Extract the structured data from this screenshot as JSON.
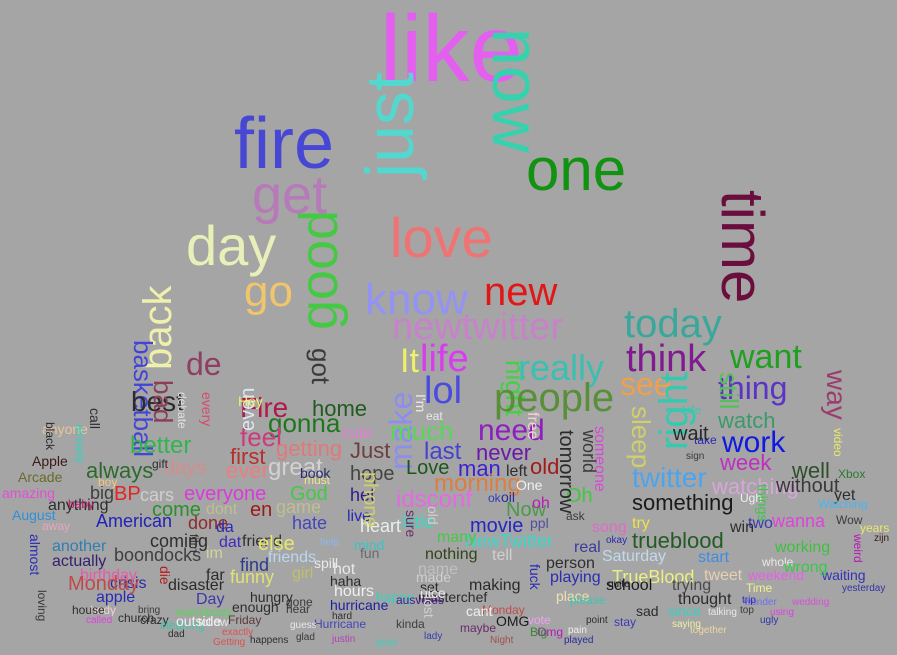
{
  "background": "#a5a5a5",
  "words": [
    {
      "text": "like",
      "color": "#e45ff0"
    },
    {
      "text": "now",
      "color": "#35d2ad"
    },
    {
      "text": "fire",
      "color": "#4747d6"
    },
    {
      "text": "just",
      "color": "#53d8d0"
    },
    {
      "text": "one",
      "color": "#119211"
    },
    {
      "text": "get",
      "color": "#b67ab8"
    },
    {
      "text": "time",
      "color": "#6a0f3d"
    },
    {
      "text": "day",
      "color": "#e9efb8"
    },
    {
      "text": "love",
      "color": "#f07373"
    },
    {
      "text": "good",
      "color": "#45c945"
    },
    {
      "text": "go",
      "color": "#f1c56b"
    },
    {
      "text": "know",
      "color": "#9393f4"
    },
    {
      "text": "new",
      "color": "#e01717"
    },
    {
      "text": "newtwitter",
      "color": "#c782c9"
    },
    {
      "text": "today",
      "color": "#3aa79b"
    },
    {
      "text": "back",
      "color": "#eff0ab"
    },
    {
      "text": "got",
      "color": "#3a3a3a"
    },
    {
      "text": "basketball",
      "color": "#4444d8"
    },
    {
      "text": "life",
      "color": "#d93bf0"
    },
    {
      "text": "It",
      "color": "#eef06a"
    },
    {
      "text": "really",
      "color": "#39c0b0"
    },
    {
      "text": "think",
      "color": "#7f1b8f"
    },
    {
      "text": "want",
      "color": "#1fa01f"
    },
    {
      "text": "see",
      "color": "#f0a04a"
    },
    {
      "text": "de",
      "color": "#8e3f63"
    },
    {
      "text": "make",
      "color": "#8d8df0"
    },
    {
      "text": "lol",
      "color": "#4b4be0"
    },
    {
      "text": "night",
      "color": "#3ed43e"
    },
    {
      "text": "people",
      "color": "#5a8f3a"
    },
    {
      "text": "thing",
      "color": "#5b33c6"
    },
    {
      "text": "best",
      "color": "#2b2b2b"
    },
    {
      "text": "bad",
      "color": "#8a3e5a"
    },
    {
      "text": "right",
      "color": "#36c9b0"
    },
    {
      "text": "still",
      "color": "#53c253"
    },
    {
      "text": "way",
      "color": "#9b3c6e"
    },
    {
      "text": "Fire",
      "color": "#ad1a4b"
    },
    {
      "text": "home",
      "color": "#205b20"
    },
    {
      "text": "gonna",
      "color": "#1d781d"
    },
    {
      "text": "much",
      "color": "#58d658"
    },
    {
      "text": "need",
      "color": "#8e1fbf"
    },
    {
      "text": "watch",
      "color": "#3b9a6a"
    },
    {
      "text": "feel",
      "color": "#cc3a7f"
    },
    {
      "text": "better",
      "color": "#31b64c"
    },
    {
      "text": "even",
      "color": "#dce8ef"
    },
    {
      "text": "getting",
      "color": "#e07979"
    },
    {
      "text": "Just",
      "color": "#6b3f3f"
    },
    {
      "text": "last",
      "color": "#4343d2"
    },
    {
      "text": "work",
      "color": "#0f1ae0"
    },
    {
      "text": "never",
      "color": "#6b18a8"
    },
    {
      "text": "first",
      "color": "#b92d2d"
    },
    {
      "text": "always",
      "color": "#2c6a2c"
    },
    {
      "text": "days",
      "color": "#d48d8d"
    },
    {
      "text": "ever",
      "color": "#e97f7f"
    },
    {
      "text": "great",
      "color": "#d2d2d2"
    },
    {
      "text": "hope",
      "color": "#444444"
    },
    {
      "text": "Love",
      "color": "#1b561b"
    },
    {
      "text": "man",
      "color": "#3f1fcf"
    },
    {
      "text": "old",
      "color": "#a31a1a"
    },
    {
      "text": "week",
      "color": "#c02ec0"
    },
    {
      "text": "well",
      "color": "#2d4f2d"
    },
    {
      "text": "twitter",
      "color": "#4ba4f0"
    },
    {
      "text": "watching",
      "color": "#d7a6d9"
    },
    {
      "text": "anyone",
      "color": "#e8c59a"
    },
    {
      "text": "big",
      "color": "#404040"
    },
    {
      "text": "BP",
      "color": "#e22525"
    },
    {
      "text": "cars",
      "color": "#cfcfcf"
    },
    {
      "text": "everyone",
      "color": "#dd38dd"
    },
    {
      "text": "God",
      "color": "#45c945"
    },
    {
      "text": "het",
      "color": "#2c1c8c"
    },
    {
      "text": "morning",
      "color": "#dd7e3e"
    },
    {
      "text": "idsconf",
      "color": "#e36ae3"
    },
    {
      "text": "something",
      "color": "#1a1a1a"
    },
    {
      "text": "yet",
      "color": "#2e2e2e"
    },
    {
      "text": "American",
      "color": "#2222b8"
    },
    {
      "text": "come",
      "color": "#2b8f2b"
    },
    {
      "text": "done",
      "color": "#8e2a2a"
    },
    {
      "text": "dat",
      "color": "#3f2bbd"
    },
    {
      "text": "hate",
      "color": "#4444bb"
    },
    {
      "text": "heart",
      "color": "#e9f0e9"
    },
    {
      "text": "little",
      "color": "#3ad7c2"
    },
    {
      "text": "movie",
      "color": "#2626c7"
    },
    {
      "text": "ppl",
      "color": "#4f4f9f"
    },
    {
      "text": "trueblood",
      "color": "#245a24"
    },
    {
      "text": "two",
      "color": "#3a3ab2"
    },
    {
      "text": "wanna",
      "color": "#dc44dc"
    },
    {
      "text": "another",
      "color": "#2e7eb3"
    },
    {
      "text": "boondocks",
      "color": "#3f3f3f"
    },
    {
      "text": "coming",
      "color": "#2e2e2e"
    },
    {
      "text": "friend",
      "color": "#2f2f2f"
    },
    {
      "text": "NewTwitter",
      "color": "#38d8c8"
    },
    {
      "text": "real",
      "color": "#3b3b9b"
    },
    {
      "text": "start",
      "color": "#3f8be0"
    },
    {
      "text": "working",
      "color": "#3ec13e"
    },
    {
      "text": "actually",
      "color": "#34206f"
    },
    {
      "text": "find",
      "color": "#2d3b8b"
    },
    {
      "text": "friends",
      "color": "#b9d8f0"
    },
    {
      "text": "nothing",
      "color": "#31431a"
    },
    {
      "text": "Saturday",
      "color": "#c0daf0"
    },
    {
      "text": "TrueBlood",
      "color": "#eef080"
    },
    {
      "text": "weekend",
      "color": "#e85ee8"
    },
    {
      "text": "waiting",
      "color": "#3333b8"
    },
    {
      "text": "crisis",
      "color": "#2a2aaa"
    },
    {
      "text": "disaster",
      "color": "#2a2a2a"
    },
    {
      "text": "funny",
      "color": "#e2e270"
    },
    {
      "text": "girl",
      "color": "#c0c06a"
    },
    {
      "text": "haha",
      "color": "#2b2b2b"
    },
    {
      "text": "made",
      "color": "#d0d0d0"
    },
    {
      "text": "making",
      "color": "#2a2a2a"
    },
    {
      "text": "playing",
      "color": "#2d2db0"
    },
    {
      "text": "school",
      "color": "#1a1a1a"
    },
    {
      "text": "trying",
      "color": "#4a4a4a"
    },
    {
      "text": "Time",
      "color": "#f0f090"
    },
    {
      "text": "thought",
      "color": "#2b2b2b"
    },
    {
      "text": "enough",
      "color": "#2e2e2e"
    },
    {
      "text": "gone",
      "color": "#3a3a3a"
    },
    {
      "text": "hours",
      "color": "#f0f0f0"
    },
    {
      "text": "hurricane",
      "color": "#1f1f9f"
    },
    {
      "text": "masterchef",
      "color": "#2b2b2b"
    },
    {
      "text": "place",
      "color": "#f0e1b0"
    },
    {
      "text": "sad",
      "color": "#2c2c2c"
    },
    {
      "text": "since",
      "color": "#3ad0c0"
    },
    {
      "text": "church",
      "color": "#2e2e2e"
    },
    {
      "text": "OMG",
      "color": "#1a1a1a"
    },
    {
      "text": "Monday",
      "color": "#c04a4a"
    },
    {
      "text": "Hurricane",
      "color": "#4545b6"
    },
    {
      "text": "kinda",
      "color": "#3d3d3d"
    },
    {
      "text": "maybe",
      "color": "#6a2a6a"
    },
    {
      "text": "Omg",
      "color": "#b51bb5"
    },
    {
      "text": "lady",
      "color": "#3a3ab0"
    },
    {
      "text": "Night",
      "color": "#a34d4d"
    },
    {
      "text": "played",
      "color": "#2a2a9a"
    },
    {
      "text": "together",
      "color": "#f0d6a0"
    },
    {
      "text": "Arcade",
      "color": "#6a6a2a"
    },
    {
      "text": "amazing",
      "color": "#e34ed5"
    },
    {
      "text": "August",
      "color": "#2f8fd8"
    },
    {
      "text": "Apple",
      "color": "#3a1a1a"
    },
    {
      "text": "Xbox",
      "color": "#2d7a2d"
    },
    {
      "text": "Wow",
      "color": "#3a3a3a"
    },
    {
      "text": "years",
      "color": "#e8e86a"
    },
    {
      "text": "zijn",
      "color": "#3a1a1a"
    },
    {
      "text": "yesterday",
      "color": "#3333a8"
    },
    {
      "text": "ugly",
      "color": "#3333a8"
    },
    {
      "text": "wedding",
      "color": "#d94ed9"
    },
    {
      "text": "wonder",
      "color": "#6f6ff0"
    },
    {
      "text": "talking",
      "color": "#e8e8e8"
    },
    {
      "text": "point",
      "color": "#2c2c2c"
    },
    {
      "text": "stay",
      "color": "#3a3ab6"
    },
    {
      "text": "pain",
      "color": "#f0f0f0"
    },
    {
      "text": "quite",
      "color": "#1a1a1a"
    },
    {
      "text": "person",
      "color": "#2e2e2e"
    },
    {
      "text": "Now",
      "color": "#4a9a4a"
    },
    {
      "text": "One",
      "color": "#f0f0f0"
    },
    {
      "text": "Oh",
      "color": "#3fc83f"
    },
    {
      "text": "oil",
      "color": "#2a2a9a"
    },
    {
      "text": "ask",
      "color": "#3a3a3a"
    },
    {
      "text": "away",
      "color": "#e8a5c0"
    },
    {
      "text": "anything",
      "color": "#2d2d2d"
    },
    {
      "text": "apple",
      "color": "#2a2ab6"
    },
    {
      "text": "boy",
      "color": "#f0c87a"
    },
    {
      "text": "baby",
      "color": "#b71b6b"
    },
    {
      "text": "birthday",
      "color": "#e85aa8"
    },
    {
      "text": "body",
      "color": "#f0d0d0"
    },
    {
      "text": "bring",
      "color": "#3a3a3a"
    },
    {
      "text": "called",
      "color": "#e040e0"
    },
    {
      "text": "crazy",
      "color": "#2a2a2a"
    },
    {
      "text": "cleaning",
      "color": "#3ac8b0"
    },
    {
      "text": "Day",
      "color": "#3a3aa8"
    },
    {
      "text": "dad",
      "color": "#2e2e2e"
    },
    {
      "text": "follow",
      "color": "#e6e6e6"
    },
    {
      "text": "everybody",
      "color": "#5ad45a"
    },
    {
      "text": "Friday",
      "color": "#5a3a3a"
    },
    {
      "text": "exactly",
      "color": "#e04f4f"
    },
    {
      "text": "happens",
      "color": "#2d2d2d"
    },
    {
      "text": "Getting",
      "color": "#e04f4f"
    },
    {
      "text": "justin",
      "color": "#b53fb5"
    },
    {
      "text": "glad",
      "color": "#3a3a3a"
    },
    {
      "text": "guys",
      "color": "#3ad0c0"
    },
    {
      "text": "guess",
      "color": "#e8e8e8"
    },
    {
      "text": "hear",
      "color": "#3a3a3a"
    },
    {
      "text": "hungry",
      "color": "#2d2d2d"
    },
    {
      "text": "happy",
      "color": "#3ad0c0"
    },
    {
      "text": "hard",
      "color": "#2e2e2e"
    },
    {
      "text": "hot",
      "color": "#e8e8e8"
    },
    {
      "text": "live",
      "color": "#2a2ab6"
    },
    {
      "text": "mind",
      "color": "#3ac3c3"
    },
    {
      "text": "many",
      "color": "#45c845"
    },
    {
      "text": "name",
      "color": "#c0c0c0"
    },
    {
      "text": "set",
      "color": "#2a2a2a"
    },
    {
      "text": "tell",
      "color": "#d0d0d0"
    },
    {
      "text": "take",
      "color": "#2a2ab6"
    },
    {
      "text": "wait",
      "color": "#2a2a2a"
    },
    {
      "text": "without",
      "color": "#3a3a3a"
    },
    {
      "text": "whole",
      "color": "#e8e8e8"
    },
    {
      "text": "Watching",
      "color": "#4ab4f0"
    },
    {
      "text": "wrong",
      "color": "#3ac84a"
    },
    {
      "text": "saying",
      "color": "#f0f0a0"
    },
    {
      "text": "please",
      "color": "#3ac8b0"
    },
    {
      "text": "tweet",
      "color": "#e8d0b0"
    },
    {
      "text": "Ugh",
      "color": "#f0f0f0"
    },
    {
      "text": "win",
      "color": "#2d2d2d"
    },
    {
      "text": "using",
      "color": "#e040e0"
    },
    {
      "text": "trip",
      "color": "#2a2ab0"
    },
    {
      "text": "top",
      "color": "#3a3a3a"
    },
    {
      "text": "song",
      "color": "#e06ac8"
    },
    {
      "text": "sign",
      "color": "#3a3a3a"
    },
    {
      "text": "okay",
      "color": "#2a2ab0"
    },
    {
      "text": "try",
      "color": "#f0e04a"
    },
    {
      "text": "left",
      "color": "#2e2e2e"
    },
    {
      "text": "oh",
      "color": "#b51bb5"
    },
    {
      "text": "ok",
      "color": "#3a3ab6"
    },
    {
      "text": "en",
      "color": "#9b1a1a"
    },
    {
      "text": "game",
      "color": "#bfbf8f"
    },
    {
      "text": "dont",
      "color": "#bfbf8f"
    },
    {
      "text": "da",
      "color": "#2a2ab6"
    },
    {
      "text": "else",
      "color": "#e8e86a"
    },
    {
      "text": "far",
      "color": "#2d2d2d"
    },
    {
      "text": "im",
      "color": "#d4d49a"
    },
    {
      "text": "cute",
      "color": "#e87ad8"
    },
    {
      "text": "gift",
      "color": "#2e2e2e"
    },
    {
      "text": "help",
      "color": "#8bb8f0"
    },
    {
      "text": "fun",
      "color": "#6a6a6a"
    },
    {
      "text": "Hey",
      "color": "#f0f06a"
    },
    {
      "text": "must",
      "color": "#e8e88a"
    },
    {
      "text": "eat",
      "color": "#e8e8e8"
    },
    {
      "text": "spill",
      "color": "#e8e8e8"
    },
    {
      "text": "Life",
      "color": "#3ac8b0"
    },
    {
      "text": "I'm",
      "color": "#f0e8e8"
    },
    {
      "text": "ausvotes",
      "color": "#4a1a8a"
    },
    {
      "text": "Monday",
      "color": "#c04a4a"
    },
    {
      "text": "cant",
      "color": "#f0f0f0"
    },
    {
      "text": "outside",
      "color": "#f0f0f0"
    },
    {
      "text": "vote",
      "color": "#f0a0f0"
    },
    {
      "text": "Big",
      "color": "#2d8a2d"
    },
    {
      "text": "house",
      "color": "#2e2e2e"
    },
    {
      "text": "phone",
      "color": "#d0d06a"
    },
    {
      "text": "tomorrow",
      "color": "#2a2a2a"
    },
    {
      "text": "someone",
      "color": "#d84ad8"
    },
    {
      "text": "sleep",
      "color": "#d0d06a"
    },
    {
      "text": "world",
      "color": "#3a3a3a"
    },
    {
      "text": "free",
      "color": "#f0d0d0"
    },
    {
      "text": "book",
      "color": "#2a2a6a"
    },
    {
      "text": "nice",
      "color": "#e8e8e8"
    },
    {
      "text": "call",
      "color": "#2e2e2e"
    },
    {
      "text": "already",
      "color": "#3ad0c0"
    },
    {
      "text": "black",
      "color": "#2a2a2a"
    },
    {
      "text": "debate",
      "color": "#e0e0e0"
    },
    {
      "text": "every",
      "color": "#d84a6a"
    },
    {
      "text": "things",
      "color": "#3ac84a"
    },
    {
      "text": "video",
      "color": "#e8e86a"
    },
    {
      "text": "almost",
      "color": "#2a2ab6"
    },
    {
      "text": "die",
      "color": "#b51b1b"
    },
    {
      "text": "film",
      "color": "#2e2e2e"
    },
    {
      "text": "lost",
      "color": "#d0d0d0"
    },
    {
      "text": "old",
      "color": "#d0d0d0"
    },
    {
      "text": "fuck",
      "color": "#2a2ab6"
    },
    {
      "text": "loving",
      "color": "#3a3a3a"
    },
    {
      "text": "weird",
      "color": "#b51bb5"
    },
    {
      "text": "sure",
      "color": "#6a2a6a"
    }
  ]
}
